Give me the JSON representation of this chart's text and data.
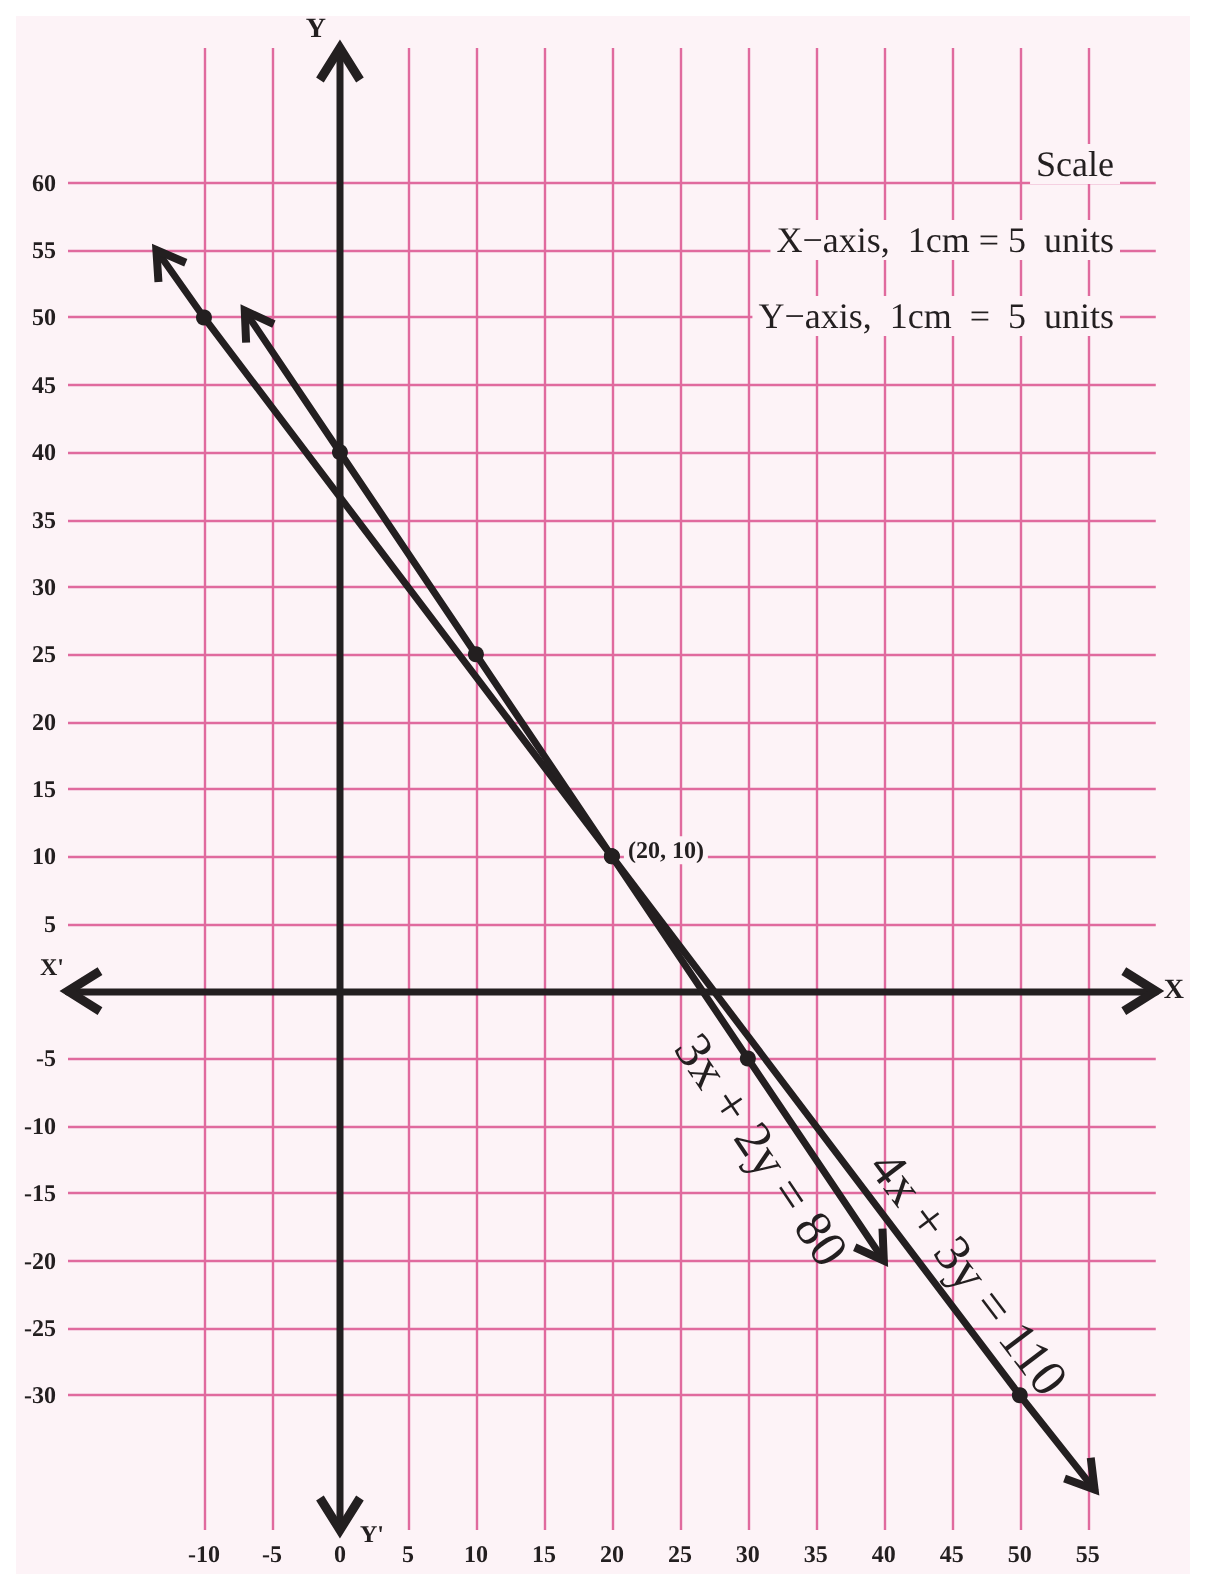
{
  "chart_data": {
    "type": "line",
    "xlabel": "X",
    "ylabel": "Y",
    "xlim": [
      -20,
      60
    ],
    "ylim": [
      -40,
      70
    ],
    "xticks": [
      -10,
      -5,
      0,
      5,
      10,
      15,
      20,
      25,
      30,
      35,
      40,
      45,
      50,
      55
    ],
    "yticks": [
      -30,
      -25,
      -20,
      -15,
      -10,
      -5,
      5,
      10,
      15,
      20,
      25,
      30,
      35,
      40,
      45,
      50,
      55,
      60
    ],
    "grid": true,
    "legend": false,
    "marker": "circle",
    "line_style": "solid",
    "series": [
      {
        "name": "4x + 3y = 110",
        "color": "#231f20",
        "x": [
          -13.5,
          -10,
          20,
          50,
          55.5
        ],
        "values": [
          55,
          50,
          10,
          -30,
          -37
        ]
      },
      {
        "name": "3x + 2y = 80",
        "color": "#231f20",
        "x": [
          -7,
          0,
          10,
          20,
          30,
          40
        ],
        "values": [
          50.5,
          40,
          25,
          10,
          -5,
          -20
        ]
      }
    ],
    "annotations": [
      "Scale",
      "X−axis,  1cm = 5  units",
      "Y−axis,  1cm  =  5  units",
      {
        "text": "(20, 10)",
        "x": 20,
        "y": 10
      },
      "X'",
      "Y'"
    ]
  }
}
